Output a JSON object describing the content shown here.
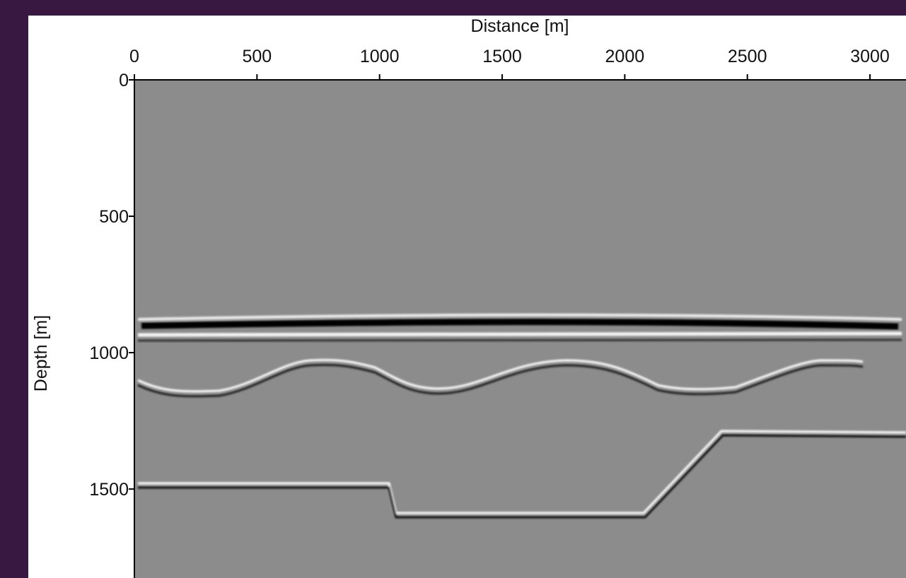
{
  "chart_data": {
    "type": "image",
    "xlabel": "Distance [m]",
    "ylabel": "Depth [m]",
    "xlim": [
      0,
      3147
    ],
    "xticks": [
      0,
      500,
      1000,
      1500,
      2000,
      2500,
      3000
    ],
    "ylim": [
      0,
      1826
    ],
    "yticks": [
      0,
      500,
      1000,
      1500
    ],
    "color": "#8c8c8c"
  }
}
